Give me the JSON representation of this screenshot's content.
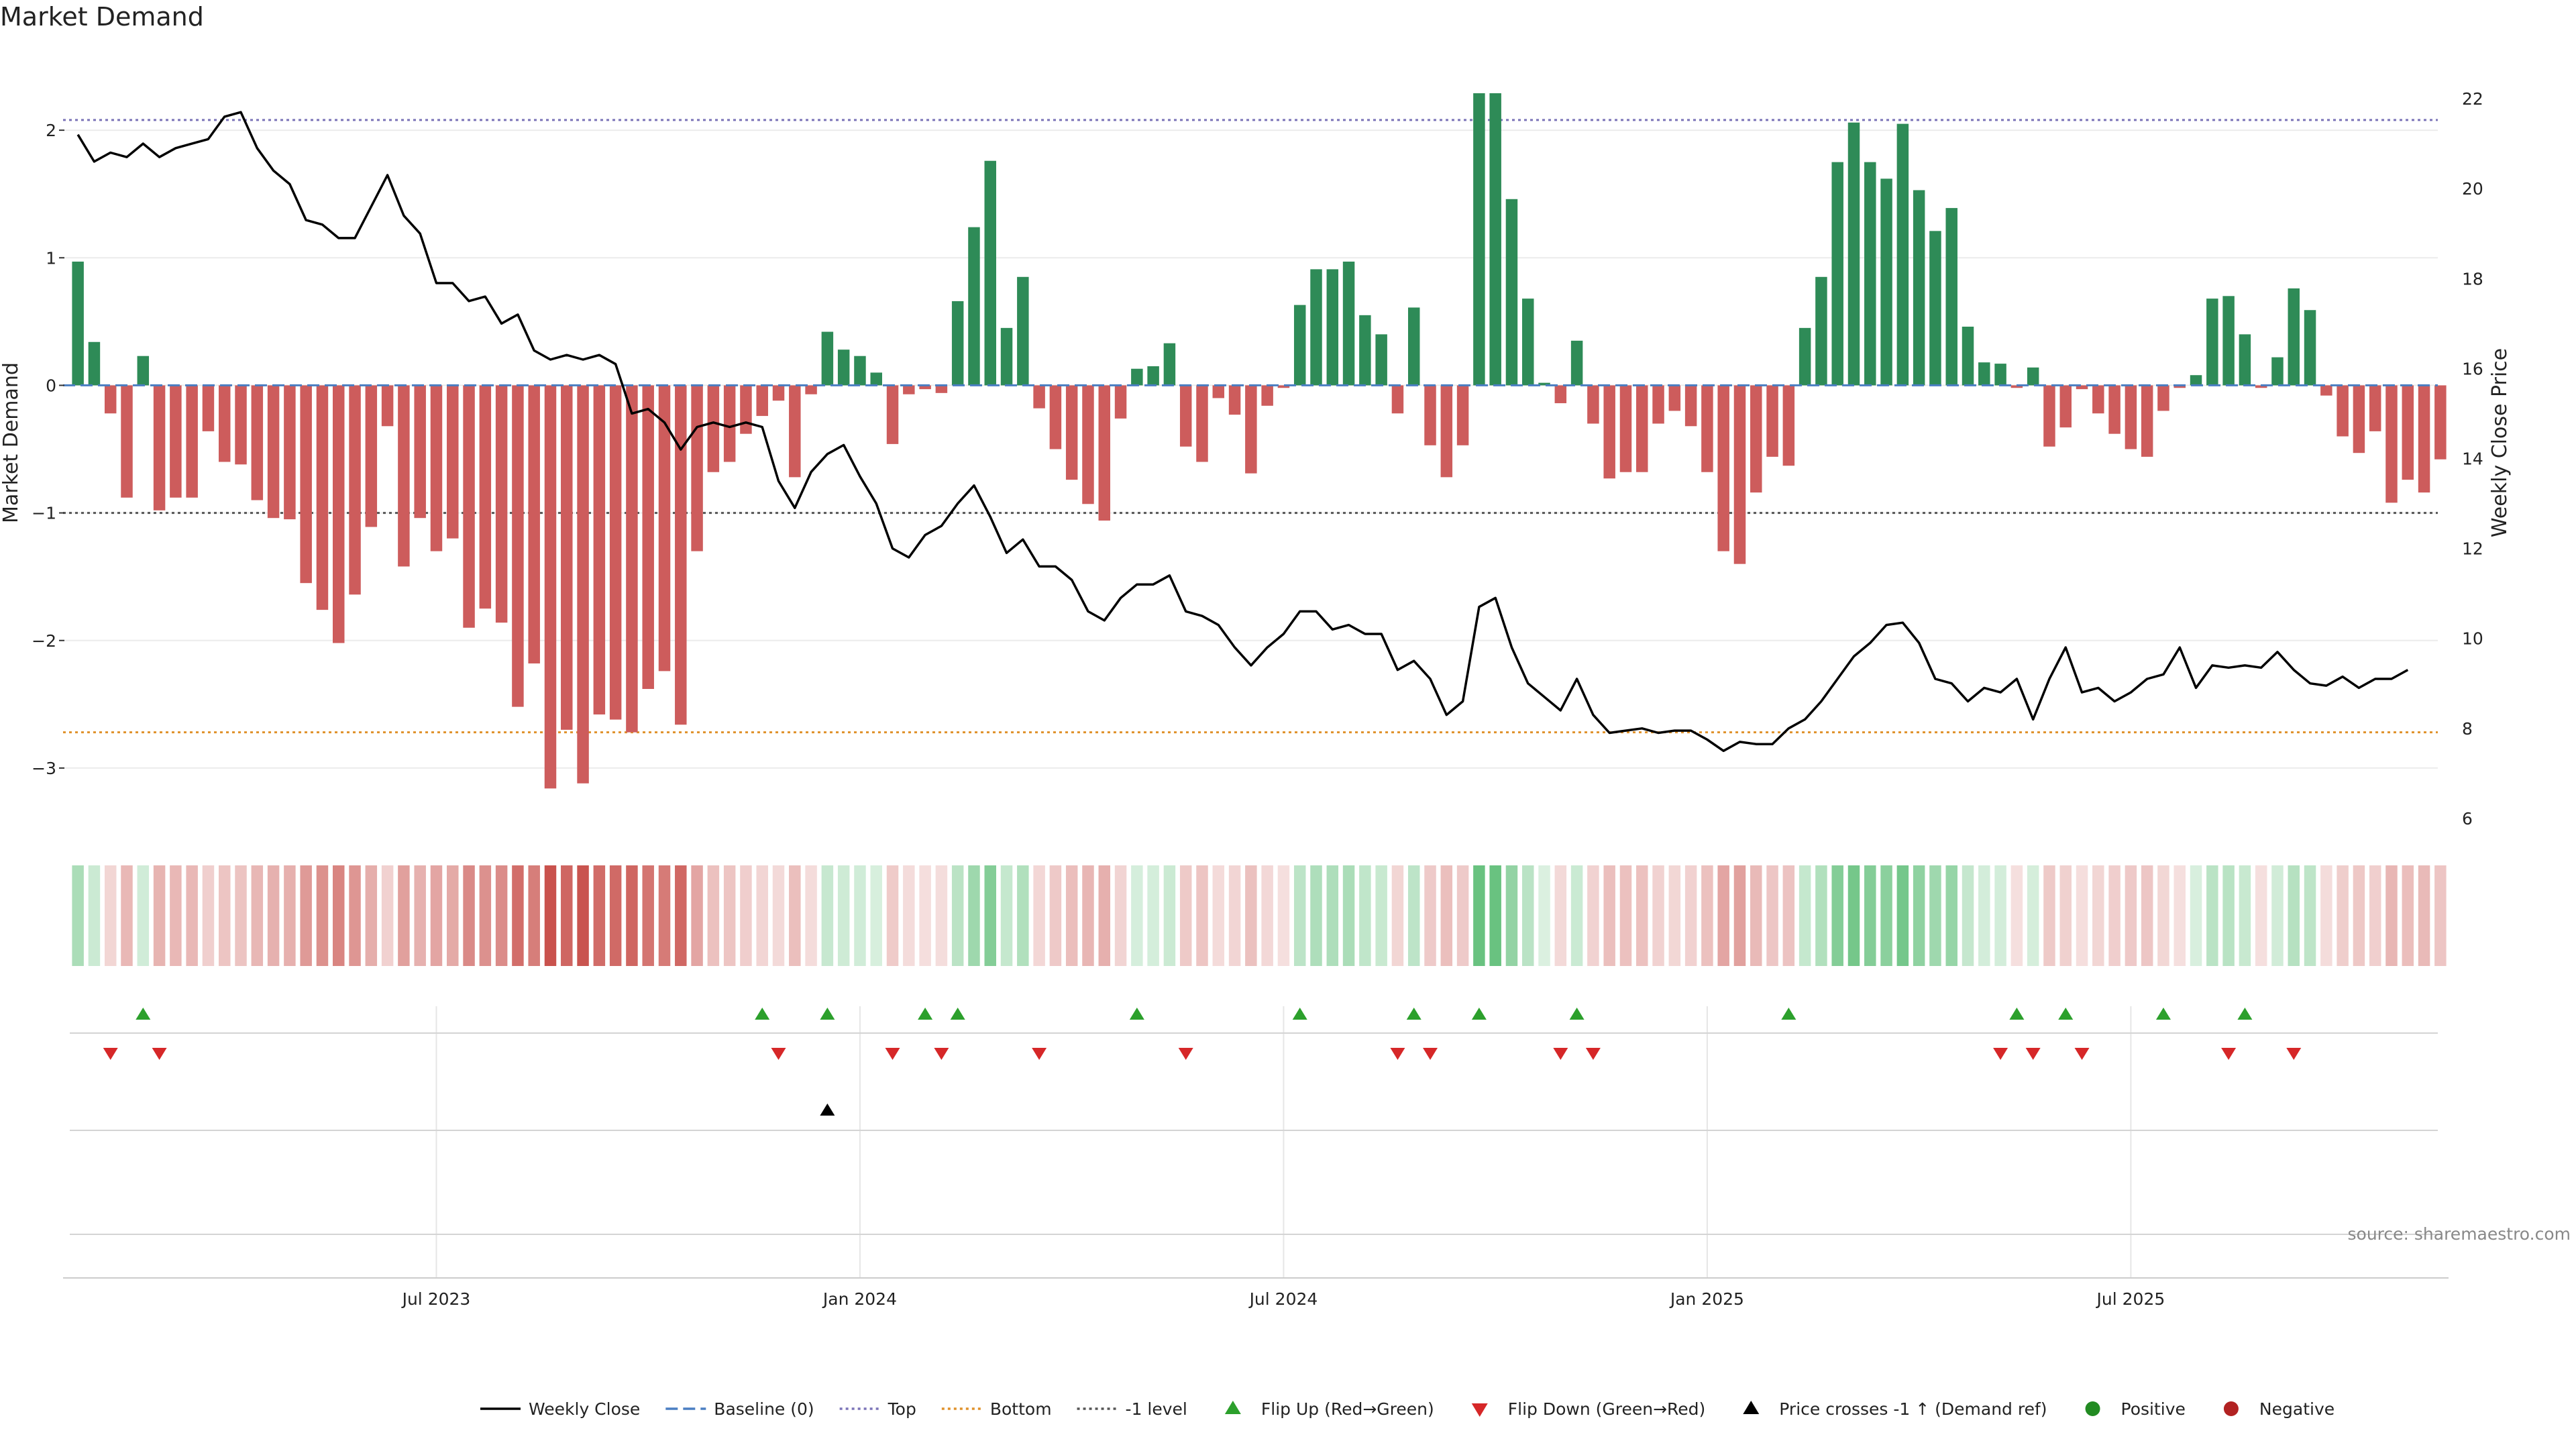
{
  "chart_data": {
    "type": "bar",
    "title": "Market Demand",
    "ylabel_left": "Market Demand",
    "ylabel_right": "Weekly Close Price",
    "ylim_left": [
      -3.5,
      2.6
    ],
    "ylim_right": [
      5.7,
      23.0
    ],
    "yticks_left": [
      2,
      1,
      0,
      -1,
      -2,
      -3
    ],
    "yticks_left_labels": [
      "2",
      "1",
      "0",
      "−1",
      "−2",
      "−3"
    ],
    "yticks_right": [
      22,
      20,
      18,
      16,
      14,
      12,
      10,
      8,
      6
    ],
    "xticks": [
      {
        "week": 22,
        "label": "Jul 2023"
      },
      {
        "week": 48,
        "label": "Jan 2024"
      },
      {
        "week": 74,
        "label": "Jul 2024"
      },
      {
        "week": 100,
        "label": "Jan 2025"
      },
      {
        "week": 126,
        "label": "Jul 2025"
      }
    ],
    "levels": {
      "top": 2.08,
      "bottom": -2.72,
      "minus_one": -1,
      "baseline": 0
    },
    "demand": [
      0.97,
      0.34,
      -0.22,
      -0.88,
      0.23,
      -0.98,
      -0.88,
      -0.88,
      -0.36,
      -0.6,
      -0.62,
      -0.9,
      -1.04,
      -1.05,
      -1.55,
      -1.76,
      -2.02,
      -1.64,
      -1.11,
      -0.32,
      -1.42,
      -1.04,
      -1.3,
      -1.2,
      -1.9,
      -1.75,
      -1.86,
      -2.52,
      -2.18,
      -3.16,
      -2.7,
      -3.12,
      -2.58,
      -2.62,
      -2.72,
      -2.38,
      -2.24,
      -2.66,
      -1.3,
      -0.68,
      -0.6,
      -0.38,
      -0.24,
      -0.12,
      -0.72,
      -0.07,
      0.42,
      0.28,
      0.23,
      0.1,
      -0.46,
      -0.07,
      -0.03,
      -0.06,
      0.66,
      1.24,
      1.76,
      0.45,
      0.85,
      -0.18,
      -0.5,
      -0.74,
      -0.93,
      -1.06,
      -0.26,
      0.13,
      0.15,
      0.33,
      -0.48,
      -0.6,
      -0.1,
      -0.23,
      -0.69,
      -0.16,
      -0.02,
      0.63,
      0.91,
      0.91,
      0.97,
      0.55,
      0.4,
      -0.22,
      0.61,
      -0.47,
      -0.72,
      -0.47,
      2.29,
      2.29,
      1.46,
      0.68,
      0.02,
      -0.14,
      0.35,
      -0.3,
      -0.73,
      -0.68,
      -0.68,
      -0.3,
      -0.2,
      -0.32,
      -0.68,
      -1.3,
      -1.4,
      -0.84,
      -0.56,
      -0.63,
      0.45,
      0.85,
      1.75,
      2.06,
      1.75,
      1.62,
      2.05,
      1.53,
      1.21,
      1.39,
      0.46,
      0.18,
      0.17,
      -0.02,
      0.14,
      -0.48,
      -0.33,
      -0.03,
      -0.22,
      -0.38,
      -0.5,
      -0.56,
      -0.2,
      -0.02,
      0.08,
      0.68,
      0.7,
      0.4,
      -0.02,
      0.22,
      0.76,
      0.59,
      -0.08,
      -0.4,
      -0.53,
      -0.36,
      -0.92,
      -0.74,
      -0.84,
      -0.58
    ],
    "close": [
      21.2,
      20.6,
      20.8,
      20.7,
      21.0,
      20.7,
      20.9,
      21.0,
      21.1,
      21.6,
      21.7,
      20.9,
      20.4,
      20.1,
      19.3,
      19.2,
      18.9,
      18.9,
      19.6,
      20.3,
      19.4,
      19.0,
      17.9,
      17.9,
      17.5,
      17.6,
      17.0,
      17.2,
      16.4,
      16.2,
      16.3,
      16.2,
      16.3,
      16.1,
      15.0,
      15.1,
      14.8,
      14.2,
      14.7,
      14.8,
      14.7,
      14.8,
      14.7,
      13.5,
      12.9,
      13.7,
      14.1,
      14.3,
      13.6,
      13.0,
      12.0,
      11.8,
      12.3,
      12.5,
      13.0,
      13.4,
      12.7,
      11.9,
      12.2,
      11.6,
      11.6,
      11.3,
      10.6,
      10.4,
      10.9,
      11.2,
      11.2,
      11.4,
      10.6,
      10.5,
      10.3,
      9.8,
      9.4,
      9.8,
      10.1,
      10.6,
      10.6,
      10.2,
      10.3,
      10.1,
      10.1,
      9.3,
      9.5,
      9.1,
      8.3,
      8.6,
      10.7,
      10.9,
      9.8,
      9.0,
      8.7,
      8.4,
      9.1,
      8.3,
      7.9,
      7.95,
      8.0,
      7.9,
      7.95,
      7.95,
      7.75,
      7.5,
      7.7,
      7.65,
      7.65,
      8.0,
      8.2,
      8.6,
      9.1,
      9.6,
      9.9,
      10.3,
      10.35,
      9.9,
      9.1,
      9.0,
      8.6,
      8.9,
      8.8,
      9.1,
      8.2,
      9.1,
      9.8,
      8.8,
      8.9,
      8.6,
      8.8,
      9.1,
      9.2,
      9.8,
      8.9,
      9.4,
      9.35,
      9.4,
      9.35,
      9.7,
      9.3,
      9.0,
      8.95,
      9.15,
      8.9,
      9.1,
      9.1,
      9.3
    ],
    "heat_values": [
      0.97,
      0.34,
      -0.22,
      -0.88,
      0.23,
      -0.98,
      -0.88,
      -0.88,
      -0.36,
      -0.6,
      -0.62,
      -0.9,
      -1.04,
      -1.05,
      -1.55,
      -1.76,
      -2.02,
      -1.64,
      -1.11,
      -0.32,
      -1.42,
      -1.04,
      -1.3,
      -1.2,
      -1.9,
      -1.75,
      -1.86,
      -2.52,
      -2.18,
      -3.16,
      -2.7,
      -3.12,
      -2.58,
      -2.62,
      -2.72,
      -2.38,
      -2.24,
      -2.66,
      -1.3,
      -0.68,
      -0.6,
      -0.38,
      -0.24,
      -0.12,
      -0.72,
      -0.07,
      0.42,
      0.28,
      0.23,
      0.1,
      -0.46,
      -0.07,
      -0.03,
      -0.06,
      0.66,
      1.24,
      1.76,
      0.45,
      0.85,
      -0.18,
      -0.5,
      -0.74,
      -0.93,
      -1.06,
      -0.26,
      0.13,
      0.15,
      0.33,
      -0.48,
      -0.6,
      -0.1,
      -0.23,
      -0.69,
      -0.16,
      -0.02,
      0.63,
      0.91,
      0.91,
      0.97,
      0.55,
      0.4,
      -0.22,
      0.61,
      -0.47,
      -0.72,
      -0.47,
      2.29,
      2.29,
      1.46,
      0.68,
      0.02,
      -0.14,
      0.35,
      -0.3,
      -0.73,
      -0.68,
      -0.68,
      -0.3,
      -0.2,
      -0.32,
      -0.68,
      -1.3,
      -1.4,
      -0.84,
      -0.56,
      -0.63,
      0.45,
      0.85,
      1.75,
      2.06,
      1.75,
      1.62,
      2.05,
      1.53,
      1.21,
      1.39,
      0.46,
      0.18,
      0.17,
      -0.02,
      0.14,
      -0.48,
      -0.33,
      -0.03,
      -0.22,
      -0.38,
      -0.5,
      -0.56,
      -0.2,
      -0.02,
      0.08,
      0.68,
      0.7,
      0.4,
      -0.02,
      0.22,
      0.76,
      0.59,
      -0.08,
      -0.4,
      -0.53,
      -0.36,
      -0.92,
      -0.74,
      -0.84,
      -0.58
    ],
    "flip_up_weeks": [
      4,
      42,
      46,
      52,
      54,
      65,
      75,
      82,
      86,
      92,
      105,
      119,
      122,
      128,
      133
    ],
    "flip_down_weeks": [
      2,
      5,
      43,
      50,
      53,
      59,
      68,
      81,
      83,
      91,
      93,
      118,
      120,
      123,
      132,
      136
    ],
    "price_cross_weeks": [
      46
    ],
    "colors": {
      "positive": "#2e8b57",
      "negative": "#cd5c5c",
      "close": "#000000",
      "baseline": "#4a7ec2",
      "top": "#7b74b8",
      "bottom": "#e0922c",
      "minus_one": "#555555",
      "flip_up": "#2ca02c",
      "flip_down": "#d62728",
      "cross": "#000000",
      "positive_dot": "#228b22",
      "negative_dot": "#b22222"
    },
    "legend": [
      {
        "label": "Weekly Close",
        "kind": "line",
        "color": "#000000",
        "dash": ""
      },
      {
        "label": "Baseline (0)",
        "kind": "line",
        "color": "#4a7ec2",
        "dash": "18,8"
      },
      {
        "label": "Top",
        "kind": "line",
        "color": "#7b74b8",
        "dash": "4,5"
      },
      {
        "label": "Bottom",
        "kind": "line",
        "color": "#e0922c",
        "dash": "4,5"
      },
      {
        "label": "-1 level",
        "kind": "line",
        "color": "#555555",
        "dash": "4,5"
      },
      {
        "label": "Flip Up (Red→Green)",
        "kind": "tri-up",
        "color": "#2ca02c"
      },
      {
        "label": "Flip Down (Green→Red)",
        "kind": "tri-down",
        "color": "#d62728"
      },
      {
        "label": "Price crosses -1 ↑ (Demand ref)",
        "kind": "tri-up",
        "color": "#000000"
      },
      {
        "label": "Positive",
        "kind": "dot",
        "color": "#228b22"
      },
      {
        "label": "Negative",
        "kind": "dot",
        "color": "#b22222"
      }
    ],
    "source": "source: sharemaestro.com"
  }
}
